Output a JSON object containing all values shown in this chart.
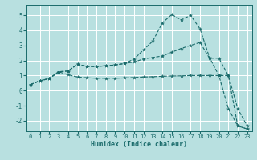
{
  "background_color": "#b8e0e0",
  "grid_color": "#ffffff",
  "line_color": "#1a6b6b",
  "xlabel": "Humidex (Indice chaleur)",
  "xlim": [
    -0.5,
    23.5
  ],
  "ylim": [
    -2.7,
    5.7
  ],
  "yticks": [
    -2,
    -1,
    0,
    1,
    2,
    3,
    4,
    5
  ],
  "xticks": [
    0,
    1,
    2,
    3,
    4,
    5,
    6,
    7,
    8,
    9,
    10,
    11,
    12,
    13,
    14,
    15,
    16,
    17,
    18,
    19,
    20,
    21,
    22,
    23
  ],
  "line_top_x": [
    0,
    1,
    2,
    3,
    4,
    5,
    6,
    7,
    8,
    9,
    10,
    11,
    12,
    13,
    14,
    15,
    16,
    17,
    18,
    19,
    20,
    21,
    22,
    23
  ],
  "line_top_y": [
    0.4,
    0.65,
    0.8,
    1.25,
    1.3,
    1.75,
    1.6,
    1.6,
    1.65,
    1.7,
    1.8,
    2.1,
    2.7,
    3.3,
    4.5,
    5.05,
    4.7,
    5.0,
    4.1,
    2.2,
    1.0,
    -1.2,
    -2.35,
    -2.55
  ],
  "line_mid_x": [
    0,
    1,
    2,
    3,
    4,
    5,
    6,
    7,
    8,
    9,
    10,
    11,
    12,
    13,
    14,
    15,
    16,
    17,
    18,
    19,
    20,
    21,
    22,
    23
  ],
  "line_mid_y": [
    0.4,
    0.65,
    0.8,
    1.25,
    1.3,
    1.75,
    1.6,
    1.6,
    1.65,
    1.7,
    1.8,
    1.9,
    2.1,
    2.2,
    2.3,
    2.55,
    2.8,
    3.0,
    3.2,
    2.15,
    2.15,
    1.0,
    -1.2,
    -2.35
  ],
  "line_bot_x": [
    0,
    1,
    2,
    3,
    4,
    5,
    6,
    7,
    8,
    9,
    10,
    11,
    12,
    13,
    14,
    15,
    16,
    17,
    18,
    19,
    20,
    21,
    22,
    23
  ],
  "line_bot_y": [
    0.4,
    0.65,
    0.8,
    1.25,
    1.05,
    0.9,
    0.85,
    0.82,
    0.82,
    0.82,
    0.84,
    0.87,
    0.9,
    0.92,
    0.95,
    0.97,
    0.98,
    1.0,
    1.0,
    1.0,
    1.0,
    1.0,
    -2.35,
    -2.55
  ]
}
